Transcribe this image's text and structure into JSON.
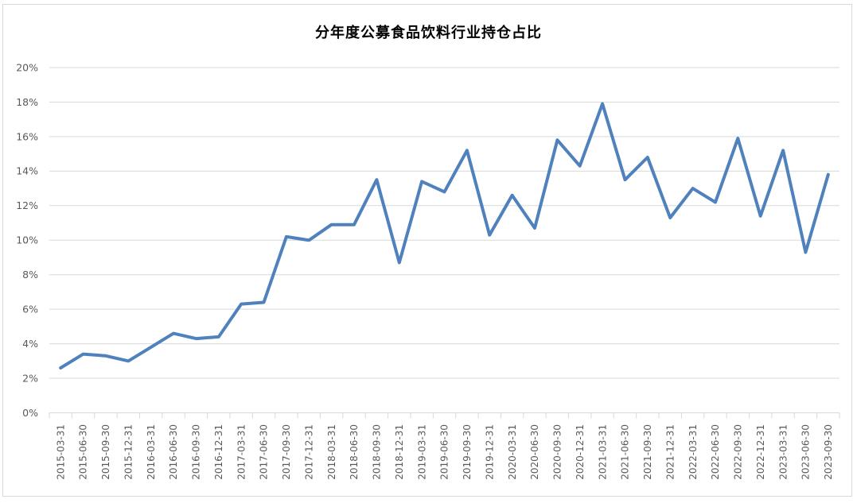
{
  "chart_data": {
    "type": "line",
    "title": "分年度公募食品饮料行业持仓占比",
    "x": [
      "2015-03-31",
      "2015-06-30",
      "2015-09-30",
      "2015-12-31",
      "2016-03-31",
      "2016-06-30",
      "2016-09-30",
      "2016-12-31",
      "2017-03-31",
      "2017-06-30",
      "2017-09-30",
      "2017-12-31",
      "2018-03-31",
      "2018-06-30",
      "2018-09-30",
      "2018-12-31",
      "2019-03-31",
      "2019-06-30",
      "2019-09-30",
      "2019-12-31",
      "2020-03-31",
      "2020-06-30",
      "2020-09-30",
      "2020-12-31",
      "2021-03-31",
      "2021-06-30",
      "2021-09-30",
      "2021-12-31",
      "2022-03-31",
      "2022-06-30",
      "2022-09-30",
      "2022-12-31",
      "2023-03-31",
      "2023-06-30",
      "2023-09-30"
    ],
    "values": [
      2.6,
      3.4,
      3.3,
      3.0,
      3.8,
      4.6,
      4.3,
      4.4,
      6.3,
      6.4,
      10.2,
      10.0,
      10.9,
      10.9,
      13.5,
      8.7,
      13.4,
      12.8,
      15.2,
      10.3,
      12.6,
      10.7,
      15.8,
      14.3,
      17.9,
      13.5,
      14.8,
      11.3,
      13.0,
      12.2,
      15.9,
      11.4,
      15.2,
      9.3,
      13.8
    ],
    "unit": "%",
    "xlabel": "",
    "ylabel": "",
    "ylim": [
      0,
      20
    ],
    "y_tick_step": 2,
    "y_tick_labels": [
      "0%",
      "2%",
      "4%",
      "6%",
      "8%",
      "10%",
      "12%",
      "14%",
      "16%",
      "18%",
      "20%"
    ],
    "grid": true,
    "legend": "none",
    "x_label_rotation_deg": -90,
    "colors": {
      "line": "#4F81BD",
      "grid": "#D9D9D9",
      "axis": "#D9D9D9",
      "tick": "#D9D9D9",
      "labels": "#595959",
      "title": "#000000",
      "frame": "#D9D9D9",
      "background": "#FFFFFF"
    }
  }
}
